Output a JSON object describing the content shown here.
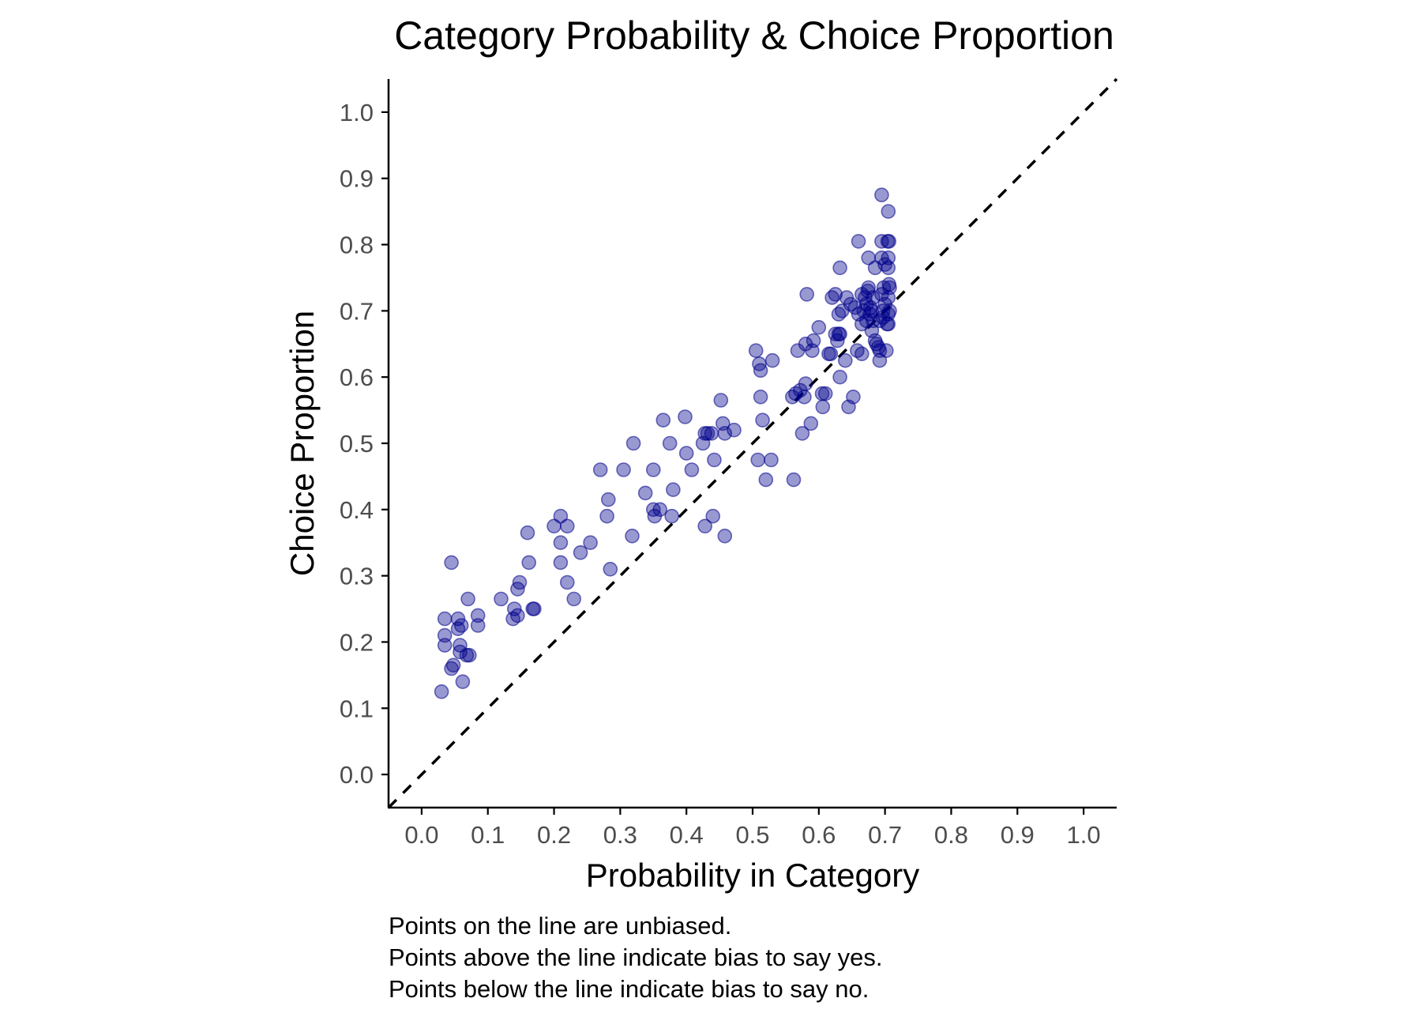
{
  "chart_data": {
    "type": "scatter",
    "title": "Category Probability & Choice Proportion",
    "xlabel": "Probability in Category",
    "ylabel": "Choice Proportion",
    "xlim": [
      -0.05,
      1.05
    ],
    "ylim": [
      -0.05,
      1.05
    ],
    "x_ticks": [
      "0.0",
      "0.1",
      "0.2",
      "0.3",
      "0.4",
      "0.5",
      "0.6",
      "0.7",
      "0.8",
      "0.9",
      "1.0"
    ],
    "y_ticks": [
      "0.0",
      "0.1",
      "0.2",
      "0.3",
      "0.4",
      "0.5",
      "0.6",
      "0.7",
      "0.8",
      "0.9",
      "1.0"
    ],
    "grid": false,
    "reference_line": "y = x (dashed)",
    "point_color": "#00008B",
    "points": [
      [
        0.03,
        0.125
      ],
      [
        0.035,
        0.235
      ],
      [
        0.035,
        0.195
      ],
      [
        0.035,
        0.21
      ],
      [
        0.045,
        0.32
      ],
      [
        0.045,
        0.16
      ],
      [
        0.048,
        0.165
      ],
      [
        0.055,
        0.235
      ],
      [
        0.055,
        0.22
      ],
      [
        0.058,
        0.195
      ],
      [
        0.058,
        0.185
      ],
      [
        0.06,
        0.225
      ],
      [
        0.062,
        0.14
      ],
      [
        0.068,
        0.18
      ],
      [
        0.07,
        0.265
      ],
      [
        0.072,
        0.18
      ],
      [
        0.085,
        0.24
      ],
      [
        0.085,
        0.225
      ],
      [
        0.12,
        0.265
      ],
      [
        0.138,
        0.235
      ],
      [
        0.14,
        0.25
      ],
      [
        0.145,
        0.24
      ],
      [
        0.145,
        0.28
      ],
      [
        0.148,
        0.29
      ],
      [
        0.16,
        0.365
      ],
      [
        0.162,
        0.32
      ],
      [
        0.168,
        0.25
      ],
      [
        0.17,
        0.25
      ],
      [
        0.2,
        0.375
      ],
      [
        0.21,
        0.39
      ],
      [
        0.21,
        0.35
      ],
      [
        0.21,
        0.32
      ],
      [
        0.22,
        0.375
      ],
      [
        0.22,
        0.29
      ],
      [
        0.23,
        0.265
      ],
      [
        0.24,
        0.335
      ],
      [
        0.255,
        0.35
      ],
      [
        0.27,
        0.46
      ],
      [
        0.28,
        0.39
      ],
      [
        0.282,
        0.415
      ],
      [
        0.285,
        0.31
      ],
      [
        0.305,
        0.46
      ],
      [
        0.318,
        0.36
      ],
      [
        0.32,
        0.5
      ],
      [
        0.338,
        0.425
      ],
      [
        0.35,
        0.46
      ],
      [
        0.35,
        0.4
      ],
      [
        0.352,
        0.39
      ],
      [
        0.36,
        0.4
      ],
      [
        0.365,
        0.535
      ],
      [
        0.375,
        0.5
      ],
      [
        0.378,
        0.39
      ],
      [
        0.38,
        0.43
      ],
      [
        0.398,
        0.54
      ],
      [
        0.4,
        0.485
      ],
      [
        0.408,
        0.46
      ],
      [
        0.425,
        0.5
      ],
      [
        0.428,
        0.515
      ],
      [
        0.428,
        0.375
      ],
      [
        0.432,
        0.515
      ],
      [
        0.438,
        0.515
      ],
      [
        0.44,
        0.39
      ],
      [
        0.442,
        0.475
      ],
      [
        0.452,
        0.565
      ],
      [
        0.455,
        0.53
      ],
      [
        0.458,
        0.515
      ],
      [
        0.458,
        0.36
      ],
      [
        0.472,
        0.52
      ],
      [
        0.505,
        0.64
      ],
      [
        0.508,
        0.475
      ],
      [
        0.51,
        0.62
      ],
      [
        0.512,
        0.61
      ],
      [
        0.512,
        0.57
      ],
      [
        0.515,
        0.535
      ],
      [
        0.52,
        0.445
      ],
      [
        0.528,
        0.475
      ],
      [
        0.53,
        0.625
      ],
      [
        0.56,
        0.57
      ],
      [
        0.562,
        0.445
      ],
      [
        0.565,
        0.575
      ],
      [
        0.568,
        0.64
      ],
      [
        0.572,
        0.58
      ],
      [
        0.575,
        0.515
      ],
      [
        0.578,
        0.57
      ],
      [
        0.58,
        0.59
      ],
      [
        0.58,
        0.65
      ],
      [
        0.582,
        0.725
      ],
      [
        0.588,
        0.53
      ],
      [
        0.59,
        0.64
      ],
      [
        0.592,
        0.655
      ],
      [
        0.6,
        0.675
      ],
      [
        0.605,
        0.575
      ],
      [
        0.606,
        0.555
      ],
      [
        0.61,
        0.575
      ],
      [
        0.615,
        0.635
      ],
      [
        0.618,
        0.635
      ],
      [
        0.62,
        0.72
      ],
      [
        0.625,
        0.665
      ],
      [
        0.625,
        0.725
      ],
      [
        0.628,
        0.655
      ],
      [
        0.63,
        0.665
      ],
      [
        0.63,
        0.695
      ],
      [
        0.632,
        0.765
      ],
      [
        0.632,
        0.6
      ],
      [
        0.632,
        0.665
      ],
      [
        0.635,
        0.7
      ],
      [
        0.64,
        0.625
      ],
      [
        0.642,
        0.72
      ],
      [
        0.645,
        0.555
      ],
      [
        0.648,
        0.71
      ],
      [
        0.652,
        0.57
      ],
      [
        0.655,
        0.705
      ],
      [
        0.658,
        0.64
      ],
      [
        0.66,
        0.695
      ],
      [
        0.66,
        0.805
      ],
      [
        0.665,
        0.635
      ],
      [
        0.665,
        0.68
      ],
      [
        0.665,
        0.725
      ],
      [
        0.668,
        0.7
      ],
      [
        0.67,
        0.72
      ],
      [
        0.672,
        0.685
      ],
      [
        0.672,
        0.71
      ],
      [
        0.674,
        0.73
      ],
      [
        0.675,
        0.735
      ],
      [
        0.675,
        0.78
      ],
      [
        0.677,
        0.695
      ],
      [
        0.678,
        0.705
      ],
      [
        0.68,
        0.67
      ],
      [
        0.68,
        0.7
      ],
      [
        0.682,
        0.685
      ],
      [
        0.682,
        0.72
      ],
      [
        0.685,
        0.655
      ],
      [
        0.685,
        0.765
      ],
      [
        0.687,
        0.65
      ],
      [
        0.69,
        0.645
      ],
      [
        0.692,
        0.64
      ],
      [
        0.692,
        0.625
      ],
      [
        0.692,
        0.685
      ],
      [
        0.695,
        0.875
      ],
      [
        0.695,
        0.805
      ],
      [
        0.695,
        0.78
      ],
      [
        0.695,
        0.725
      ],
      [
        0.697,
        0.69
      ],
      [
        0.697,
        0.7
      ],
      [
        0.698,
        0.735
      ],
      [
        0.7,
        0.77
      ],
      [
        0.7,
        0.71
      ],
      [
        0.702,
        0.64
      ],
      [
        0.703,
        0.68
      ],
      [
        0.704,
        0.805
      ],
      [
        0.705,
        0.78
      ],
      [
        0.705,
        0.765
      ],
      [
        0.705,
        0.72
      ],
      [
        0.705,
        0.695
      ],
      [
        0.705,
        0.68
      ],
      [
        0.705,
        0.85
      ],
      [
        0.706,
        0.805
      ],
      [
        0.706,
        0.74
      ],
      [
        0.707,
        0.7
      ],
      [
        0.707,
        0.735
      ]
    ]
  },
  "caption": {
    "line1": "Points on the line are unbiased.",
    "line2": "Points above the line indicate bias to say yes.",
    "line3": "Points below the line indicate bias to say no."
  }
}
